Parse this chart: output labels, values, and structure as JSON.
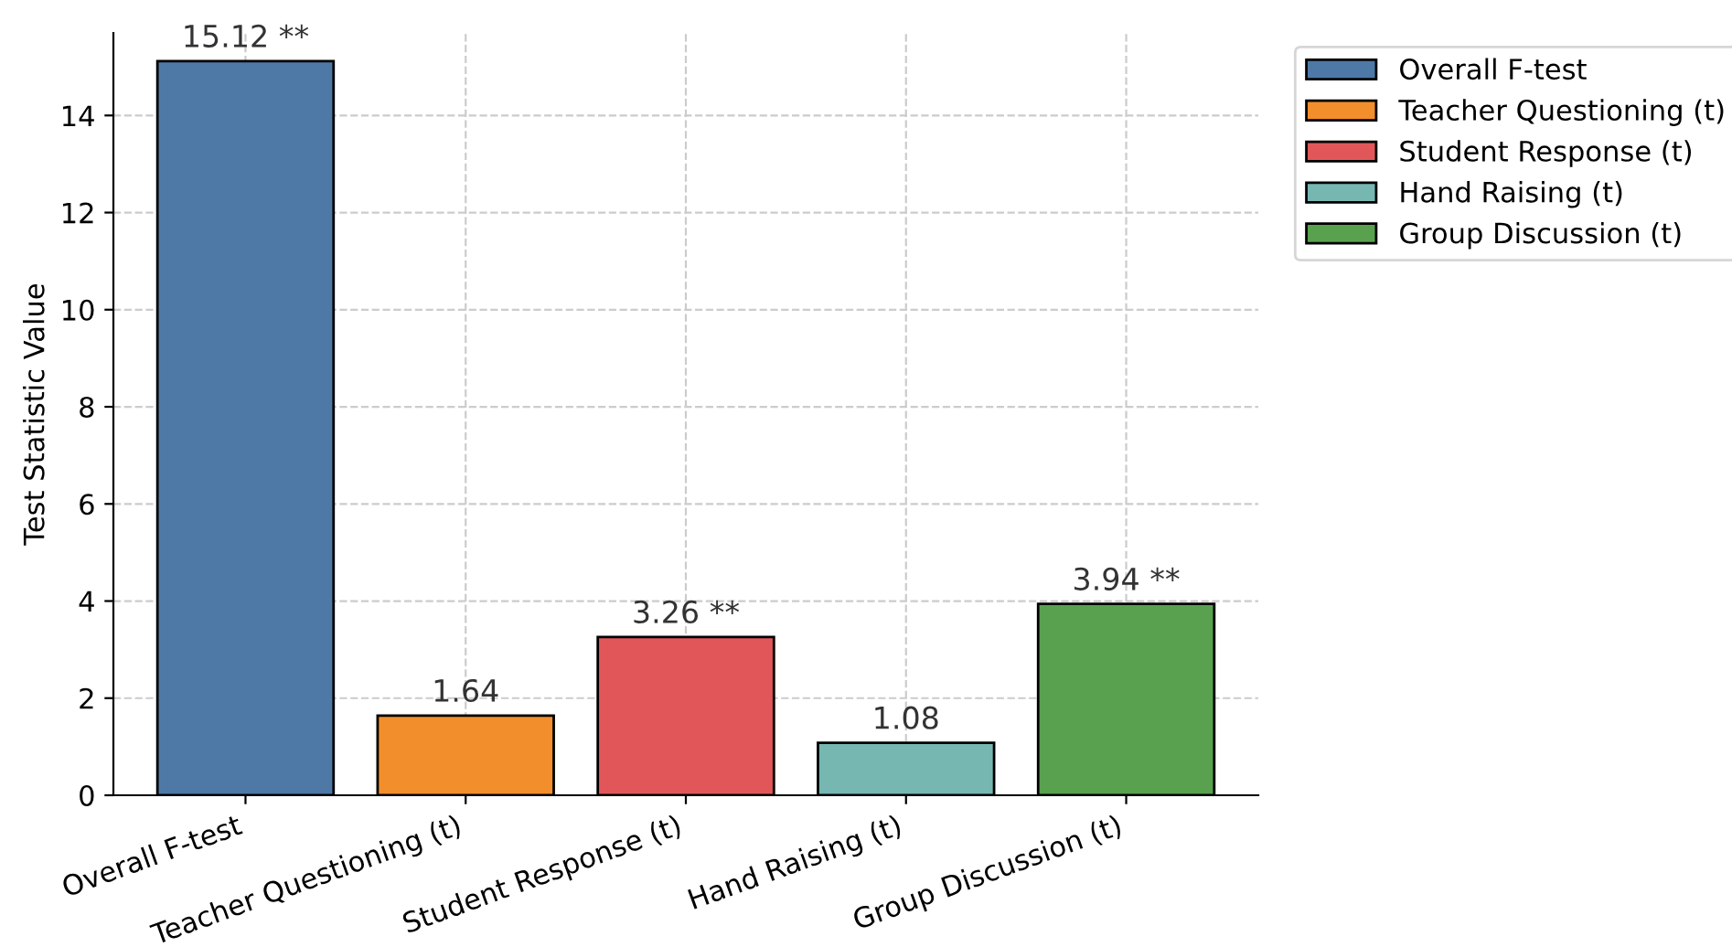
{
  "chart_data": {
    "type": "bar",
    "ylabel": "Test Statistic Value",
    "categories": [
      "Overall F-test",
      "Teacher Questioning (t)",
      "Student Response (t)",
      "Hand Raising (t)",
      "Group Discussion (t)"
    ],
    "series": [
      {
        "name": "Overall F-test",
        "color": "#4e79a7",
        "values": [
          15.12,
          null,
          null,
          null,
          null
        ],
        "value_labels": [
          "15.12 **",
          null,
          null,
          null,
          null
        ]
      },
      {
        "name": "Teacher Questioning (t)",
        "color": "#f28e2b",
        "values": [
          null,
          1.64,
          null,
          null,
          null
        ],
        "value_labels": [
          null,
          "1.64",
          null,
          null,
          null
        ]
      },
      {
        "name": "Student Response (t)",
        "color": "#e15759",
        "values": [
          null,
          null,
          3.26,
          null,
          null
        ],
        "value_labels": [
          null,
          null,
          "3.26 **",
          null,
          null
        ]
      },
      {
        "name": "Hand Raising (t)",
        "color": "#76b7b2",
        "values": [
          null,
          null,
          null,
          1.08,
          null
        ],
        "value_labels": [
          null,
          null,
          null,
          "1.08",
          null
        ]
      },
      {
        "name": "Group Discussion (t)",
        "color": "#59a14f",
        "values": [
          null,
          null,
          null,
          null,
          3.94
        ],
        "value_labels": [
          null,
          null,
          null,
          null,
          "3.94 **"
        ]
      }
    ],
    "ylim": [
      0,
      15.7
    ],
    "yticks": [
      0,
      2,
      4,
      6,
      8,
      10,
      12,
      14
    ],
    "grid": true,
    "legend": "top right"
  }
}
